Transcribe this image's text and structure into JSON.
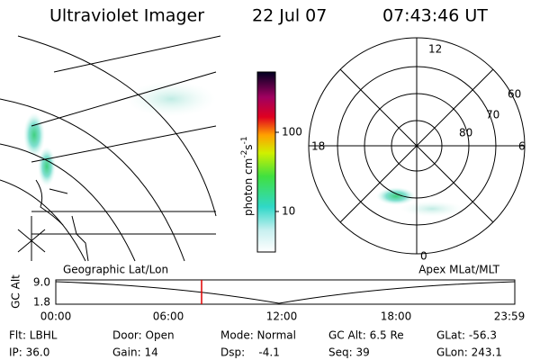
{
  "header": {
    "title": "Ultraviolet Imager",
    "date": "22 Jul 07",
    "time": "07:43:46 UT"
  },
  "colorbar": {
    "label": {
      "base": "photon cm",
      "exp1": "-2",
      "unit2": "s",
      "exp2": "-1"
    },
    "ticks": [
      "100",
      "10"
    ]
  },
  "polar": {
    "mlt_labels": [
      "12",
      "18",
      "6",
      "0"
    ],
    "lat_labels": [
      "60",
      "70",
      "80"
    ]
  },
  "timeline": {
    "left_label": "Geographic Lat/Lon",
    "right_label": "Apex MLat/MLT",
    "axis_label": "GC Alt",
    "y_labels": [
      "9.0",
      "1.8"
    ],
    "time_labels": [
      "00:00",
      "06:00",
      "12:00",
      "18:00",
      "23:59"
    ]
  },
  "footer": {
    "rows": [
      [
        "Flt: LBHL",
        "Door: Open",
        "Mode: Normal",
        "GC Alt: 6.5 Re",
        "GLat: -56.3"
      ],
      [
        "IP: 36.0",
        "Gain: 14",
        "Dsp:    -4.1",
        "Seq: 39",
        "GLon: 243.1"
      ]
    ]
  }
}
